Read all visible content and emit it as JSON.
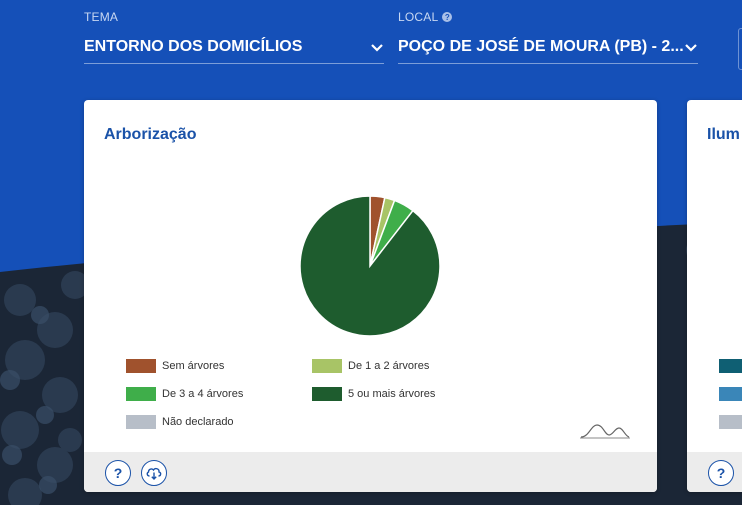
{
  "filters": {
    "tema": {
      "label": "TEMA",
      "value": "ENTORNO DOS DOMICÍLIOS"
    },
    "local": {
      "label": "LOCAL",
      "value": "POÇO DE JOSÉ DE MOURA (PB) - 2..."
    }
  },
  "card": {
    "title": "Arborização",
    "legend": [
      {
        "label": "Sem árvores",
        "color": "#a0522d"
      },
      {
        "label": "De 1 a 2 árvores",
        "color": "#a8c466"
      },
      {
        "label": "De 3 a 4 árvores",
        "color": "#3fae4a"
      },
      {
        "label": "5 ou mais árvores",
        "color": "#1e5c2e"
      },
      {
        "label": "Não declarado",
        "color": "#b7bec8"
      }
    ],
    "help_icon": "question-icon",
    "download_icon": "cloud-download-icon"
  },
  "side_card": {
    "title": "Ilum",
    "swatch_colors": [
      "#0f5f73",
      "#3a86b8",
      "#b7bec8"
    ]
  },
  "chart_data": {
    "type": "pie",
    "categories": [
      "Sem árvores",
      "De 1 a 2 árvores",
      "De 3 a 4 árvores",
      "5 ou mais árvores",
      "Não declarado"
    ],
    "values": [
      3.4,
      2.3,
      4.8,
      89.5,
      0.0
    ],
    "colors": [
      "#a0522d",
      "#a8c466",
      "#3fae4a",
      "#1e5c2e",
      "#b7bec8"
    ],
    "legend_position": "bottom"
  }
}
